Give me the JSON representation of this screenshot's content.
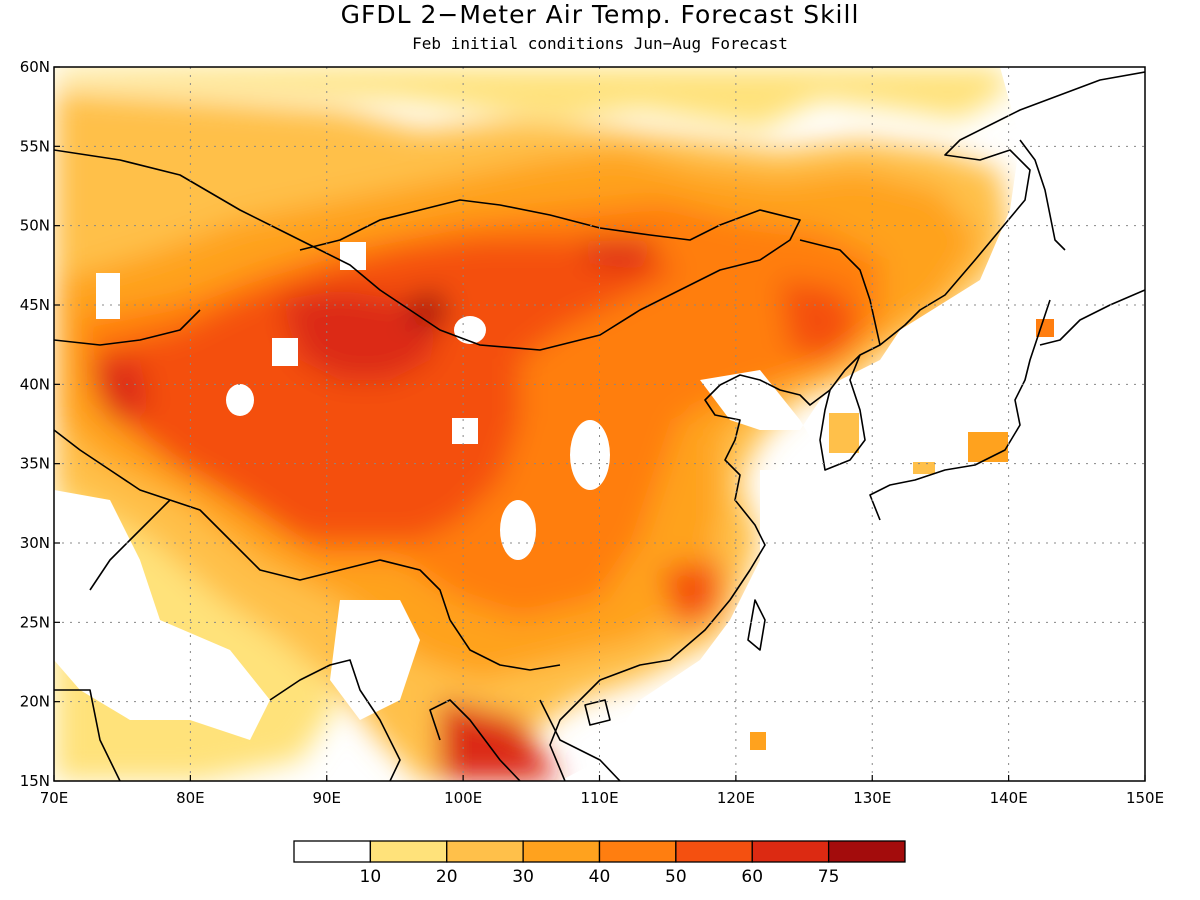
{
  "map": {
    "title": "GFDL 2−Meter Air Temp. Forecast Skill",
    "subtitle": "Feb initial conditions   Jun−Aug Forecast",
    "lon_range": [
      70,
      150
    ],
    "lat_range": [
      15,
      60
    ],
    "lat_ticks": [
      "15N",
      "20N",
      "25N",
      "30N",
      "35N",
      "40N",
      "45N",
      "50N",
      "55N",
      "60N"
    ],
    "lon_ticks": [
      "70E",
      "80E",
      "90E",
      "100E",
      "110E",
      "120E",
      "130E",
      "140E",
      "150E"
    ],
    "grid": "dotted"
  },
  "colorbar": {
    "colors": [
      "#ffffff",
      "#ffe27a",
      "#ffc04a",
      "#ffa21e",
      "#ff7e10",
      "#f45010",
      "#dc2a12",
      "#a30c0c"
    ],
    "labels": [
      "10",
      "20",
      "30",
      "40",
      "50",
      "60",
      "75"
    ]
  }
}
